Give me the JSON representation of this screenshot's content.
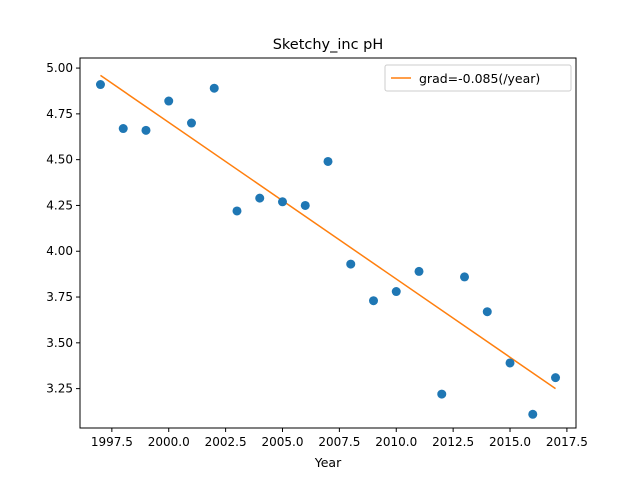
{
  "chart_data": {
    "type": "scatter",
    "title": "Sketchy_inc pH",
    "xlabel": "Year",
    "ylabel": "",
    "xlim": [
      1996.1,
      2017.9
    ],
    "ylim": [
      3.035,
      5.055
    ],
    "xticks": [
      1997.5,
      2000.0,
      2002.5,
      2005.0,
      2007.5,
      2010.0,
      2012.5,
      2015.0,
      2017.5
    ],
    "xtick_labels": [
      "1997.5",
      "2000.0",
      "2002.5",
      "2005.0",
      "2007.5",
      "2010.0",
      "2012.5",
      "2015.0",
      "2017.5"
    ],
    "yticks": [
      3.25,
      3.5,
      3.75,
      4.0,
      4.25,
      4.5,
      4.75,
      5.0
    ],
    "ytick_labels": [
      "3.25",
      "3.50",
      "3.75",
      "4.00",
      "4.25",
      "4.50",
      "4.75",
      "5.00"
    ],
    "grid": false,
    "legend_position": "top-right",
    "series": [
      {
        "type": "scatter",
        "color": "#1f77b4",
        "x": [
          1997,
          1998,
          1999,
          2000,
          2001,
          2002,
          2003,
          2004,
          2005,
          2006,
          2007,
          2008,
          2009,
          2010,
          2011,
          2012,
          2013,
          2014,
          2015,
          2016,
          2017
        ],
        "y": [
          4.91,
          4.67,
          4.66,
          4.82,
          4.7,
          4.89,
          4.22,
          4.29,
          4.27,
          4.25,
          4.49,
          3.93,
          3.73,
          3.78,
          3.89,
          3.22,
          3.86,
          3.67,
          3.39,
          3.11,
          3.31
        ]
      },
      {
        "type": "line",
        "name": "grad=-0.085(/year)",
        "color": "#ff7f0e",
        "x": [
          1997,
          2017
        ],
        "y": [
          4.96,
          3.25
        ]
      }
    ]
  }
}
